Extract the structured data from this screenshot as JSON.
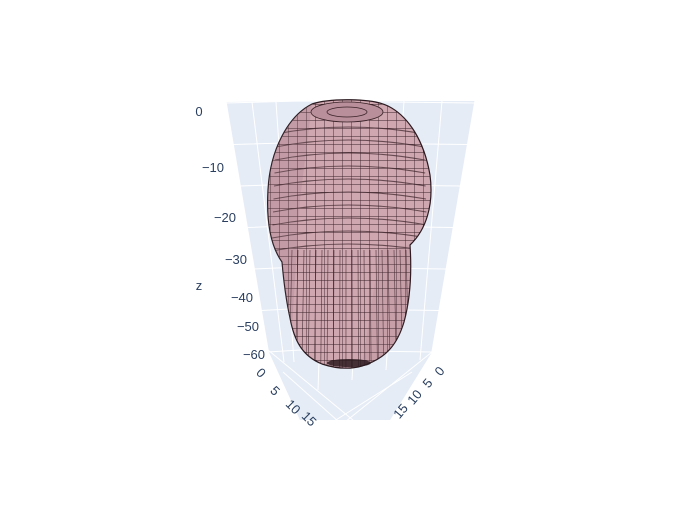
{
  "chart_data": {
    "type": "voxel-3d",
    "description_visible": "pink voxel mesh volume on 3D scene axes",
    "z_axis": {
      "title": "z",
      "range": [
        -60,
        0
      ],
      "ticks": [
        0,
        -10,
        -20,
        -30,
        -40,
        -50,
        -60
      ],
      "tick_labels": [
        "0",
        "−10",
        "−20",
        "−30",
        "−40",
        "−50",
        "−60"
      ]
    },
    "x_axis": {
      "title": "",
      "ticks_visible": [
        0,
        5,
        10,
        15
      ],
      "tick_labels": [
        "0",
        "5",
        "10",
        "15"
      ]
    },
    "y_axis": {
      "title": "",
      "ticks_visible": [
        0,
        5,
        10,
        15
      ],
      "tick_labels": [
        "0",
        "5",
        "10",
        "15"
      ]
    },
    "mesh_color": "#c9a0aa",
    "edge_color": "#2a1a1f",
    "scene_background": "#e5ecf6",
    "grid_color": "#ffffff",
    "legend": "none",
    "grid": true
  }
}
